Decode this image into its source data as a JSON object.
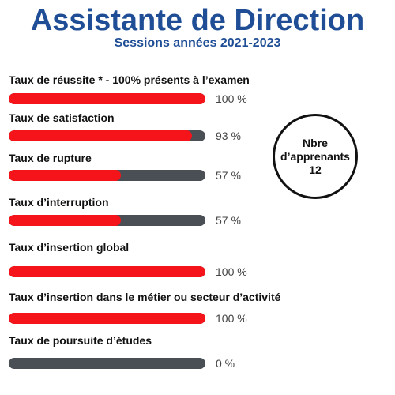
{
  "header": {
    "title": "Assistante de Direction",
    "subtitle": "Sessions années 2021-2023"
  },
  "metrics": [
    {
      "label": "Taux de réussite * - 100% présents à l’examen",
      "value_text": "100 %",
      "percent": 100
    },
    {
      "label": "Taux de satisfaction",
      "value_text": "93 %",
      "percent": 93
    },
    {
      "label": "Taux de rupture",
      "value_text": "57 %",
      "percent": 57
    },
    {
      "label": "Taux d’interruption",
      "value_text": "57 %",
      "percent": 57
    },
    {
      "label": "Taux d’insertion global",
      "value_text": "100 %",
      "percent": 100
    },
    {
      "label": "Taux d’insertion dans le métier ou secteur d’activité",
      "value_text": "100 %",
      "percent": 100
    },
    {
      "label": "Taux de poursuite d’études",
      "value_text": "0 %",
      "percent": 0
    }
  ],
  "badge": {
    "line1": "Nbre",
    "line2": "d’apprenants",
    "count": "12"
  },
  "colors": {
    "title": "#1f4e96",
    "fill": "#f5141a",
    "track": "#4a4f55"
  }
}
